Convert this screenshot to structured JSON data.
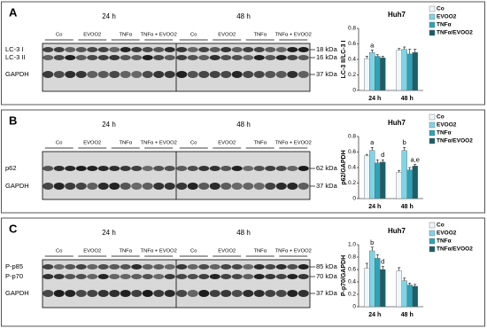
{
  "blots": [
    {
      "letter": "A",
      "times": [
        "24 h",
        "48 h"
      ],
      "groups": [
        "Co",
        "EVOO2",
        "TNFα",
        "TNFα + EVOO2"
      ],
      "bands": [
        {
          "label": "LC-3 I",
          "marker": "18 kDa"
        },
        {
          "label": "LC-3 II",
          "marker": "16 kDa"
        },
        {
          "label": "GAPDH",
          "marker": "37 kDa"
        }
      ]
    },
    {
      "letter": "B",
      "times": [
        "24 h",
        "48 h"
      ],
      "groups": [
        "Co",
        "EVOO2",
        "TNFα",
        "TNFα + EVOO2"
      ],
      "bands": [
        {
          "label": "p62",
          "marker": "62 kDa"
        },
        {
          "label": "GAPDH",
          "marker": "37 kDa"
        }
      ]
    },
    {
      "letter": "C",
      "times": [
        "24 h",
        "48 h"
      ],
      "groups": [
        "Co",
        "EVOO2",
        "TNFα",
        "TNFα + EVOO2"
      ],
      "bands": [
        {
          "label": "P-p85",
          "marker": "85 kDa"
        },
        {
          "label": "P-p70",
          "marker": "70 kDa"
        },
        {
          "label": "GAPDH",
          "marker": "37 kDa"
        }
      ]
    }
  ],
  "chart_data": [
    {
      "type": "bar",
      "title": "Huh7",
      "y_label": "LC-3 II/LC-3 I",
      "categories": [
        "24 h",
        "48 h"
      ],
      "ylim": [
        0,
        0.8
      ],
      "yticks": [
        0,
        0.2,
        0.4,
        0.6,
        0.8
      ],
      "series": [
        {
          "name": "Co",
          "color": "#eef8fb",
          "values": [
            0.41,
            0.52
          ],
          "errors": [
            0.03,
            0.02
          ]
        },
        {
          "name": "EVOO2",
          "color": "#80d4e6",
          "values": [
            0.49,
            0.53
          ],
          "errors": [
            0.03,
            0.03
          ]
        },
        {
          "name": "TNFα",
          "color": "#2ea3b6",
          "values": [
            0.44,
            0.47
          ],
          "errors": [
            0.02,
            0.06
          ]
        },
        {
          "name": "TNFα/EVOO2",
          "color": "#1b5f6b",
          "values": [
            0.42,
            0.49
          ],
          "errors": [
            0.02,
            0.04
          ]
        }
      ],
      "annotations": [
        {
          "text": "a",
          "series": "EVOO2",
          "category": "24 h"
        }
      ]
    },
    {
      "type": "bar",
      "title": "Huh7",
      "y_label": "p62/GAPDH",
      "categories": [
        "24 h",
        "48 h"
      ],
      "ylim": [
        0,
        0.8
      ],
      "yticks": [
        0,
        0.2,
        0.4,
        0.6,
        0.8
      ],
      "series": [
        {
          "name": "Co",
          "color": "#eef8fb",
          "values": [
            0.55,
            0.34
          ],
          "errors": [
            0.02,
            0.02
          ]
        },
        {
          "name": "EVOO2",
          "color": "#80d4e6",
          "values": [
            0.62,
            0.62
          ],
          "errors": [
            0.04,
            0.04
          ]
        },
        {
          "name": "TNFα",
          "color": "#2ea3b6",
          "values": [
            0.46,
            0.37
          ],
          "errors": [
            0.04,
            0.03
          ]
        },
        {
          "name": "TNFα/EVOO2",
          "color": "#1b5f6b",
          "values": [
            0.47,
            0.42
          ],
          "errors": [
            0.03,
            0.02
          ]
        }
      ],
      "annotations": [
        {
          "text": "a",
          "series": "EVOO2",
          "category": "24 h"
        },
        {
          "text": "d",
          "series": "TNFα/EVOO2",
          "category": "24 h"
        },
        {
          "text": "b",
          "series": "EVOO2",
          "category": "48 h"
        },
        {
          "text": "a,e",
          "series": "TNFα/EVOO2",
          "category": "48 h"
        }
      ]
    },
    {
      "type": "bar",
      "title": "Huh7",
      "y_label": "P-p70/GAPDH",
      "categories": [
        "24 h",
        "48 h"
      ],
      "ylim": [
        0,
        1
      ],
      "yticks": [
        0,
        0.2,
        0.4,
        0.6,
        0.8,
        {
          "value": 1,
          "label": "1.0"
        }
      ],
      "series": [
        {
          "name": "Co",
          "color": "#eef8fb",
          "values": [
            0.62,
            0.58
          ],
          "errors": [
            0.08,
            0.05
          ]
        },
        {
          "name": "EVOO2",
          "color": "#80d4e6",
          "values": [
            0.9,
            0.42
          ],
          "errors": [
            0.06,
            0.04
          ]
        },
        {
          "name": "TNFα",
          "color": "#2ea3b6",
          "values": [
            0.78,
            0.35
          ],
          "errors": [
            0.06,
            0.03
          ]
        },
        {
          "name": "TNFα/EVOO2",
          "color": "#1b5f6b",
          "values": [
            0.6,
            0.33
          ],
          "errors": [
            0.05,
            0.03
          ]
        }
      ],
      "annotations": [
        {
          "text": "b",
          "series": "EVOO2",
          "category": "24 h"
        },
        {
          "text": "d",
          "series": "TNFα/EVOO2",
          "category": "24 h"
        }
      ]
    }
  ]
}
